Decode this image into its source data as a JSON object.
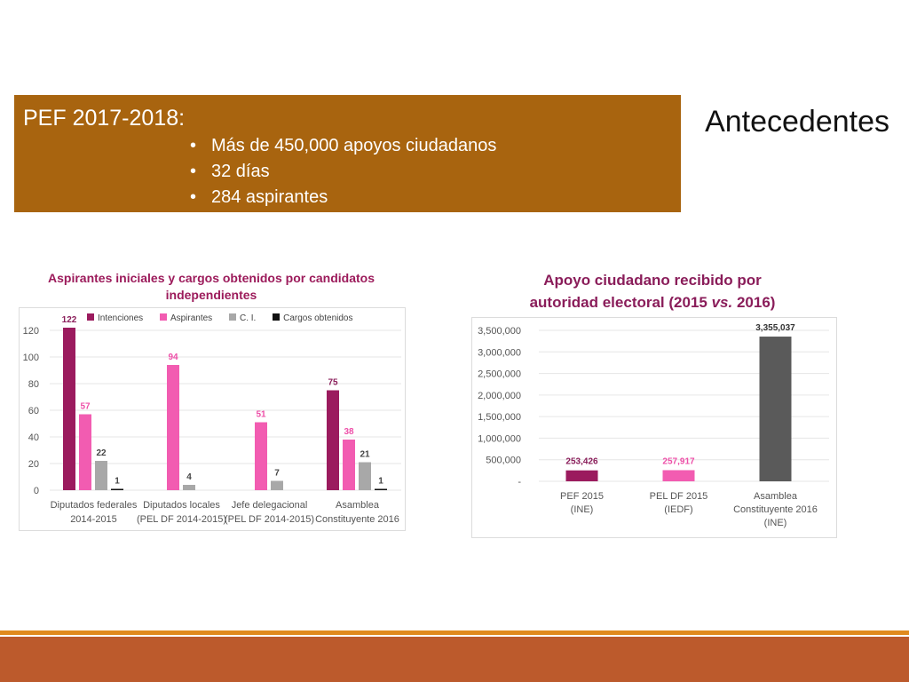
{
  "banner": {
    "title": "PEF 2017-2018:",
    "bullets": [
      "Más de 450,000 apoyos ciudadanos",
      "32 días",
      "284 aspirantes"
    ],
    "bullet_char": "•",
    "color": "#a8640f"
  },
  "slide_title": "Antecedentes",
  "left_chart_title": "Aspirantes iniciales y cargos obtenidos por candidatos independientes",
  "right_chart_title_main": "Apoyo ciudadano recibido por",
  "right_chart_title_line2_a": "autoridad electoral (2015 ",
  "right_chart_title_line2_em": "vs.",
  "right_chart_title_line2_b": " 2016)",
  "chart_data": [
    {
      "type": "bar",
      "title": "Aspirantes iniciales y cargos obtenidos por candidatos independientes",
      "categories": [
        [
          "Diputados federales",
          "2014-2015"
        ],
        [
          "Diputados locales",
          "(PEL DF 2014-2015)"
        ],
        [
          "Jefe delegacional",
          "(PEL DF 2014-2015)"
        ],
        [
          "Asamblea",
          "Constituyente 2016"
        ]
      ],
      "series": [
        {
          "name": "Intenciones",
          "color": "#9b1b5e",
          "values": [
            122,
            null,
            null,
            75
          ]
        },
        {
          "name": "Aspirantes",
          "color": "#f25cb1",
          "values": [
            57,
            94,
            51,
            38
          ]
        },
        {
          "name": "C. I.",
          "color": "#a8a8a8",
          "values": [
            22,
            4,
            7,
            21
          ]
        },
        {
          "name": "Cargos obtenidos",
          "color": "#111111",
          "values": [
            1,
            null,
            null,
            1
          ]
        }
      ],
      "yticks": [
        "0",
        "20",
        "40",
        "60",
        "80",
        "100",
        "120"
      ],
      "ylim": [
        0,
        130
      ],
      "legend": "top",
      "grid": true
    },
    {
      "type": "bar",
      "title": "Apoyo ciudadano recibido por autoridad electoral (2015 vs. 2016)",
      "categories": [
        [
          "PEF 2015",
          "(INE)"
        ],
        [
          "PEL DF 2015",
          "(IEDF)"
        ],
        [
          "Asamblea",
          "Constituyente 2016",
          "(INE)"
        ]
      ],
      "values": [
        253426,
        257917,
        3355037
      ],
      "labels": [
        "253,426",
        "257,917",
        "3,355,037"
      ],
      "colors": [
        "#9b1b5e",
        "#f25cb1",
        "#5a5a5a"
      ],
      "label_colors": [
        "#8a1d5a",
        "#ee4fa8",
        "#333333"
      ],
      "yticks": [
        "-",
        "500,000",
        "1,000,000",
        "1,500,000",
        "2,000,000",
        "2,500,000",
        "3,000,000",
        "3,500,000"
      ],
      "ylim": [
        0,
        3500000
      ],
      "grid": true
    }
  ]
}
